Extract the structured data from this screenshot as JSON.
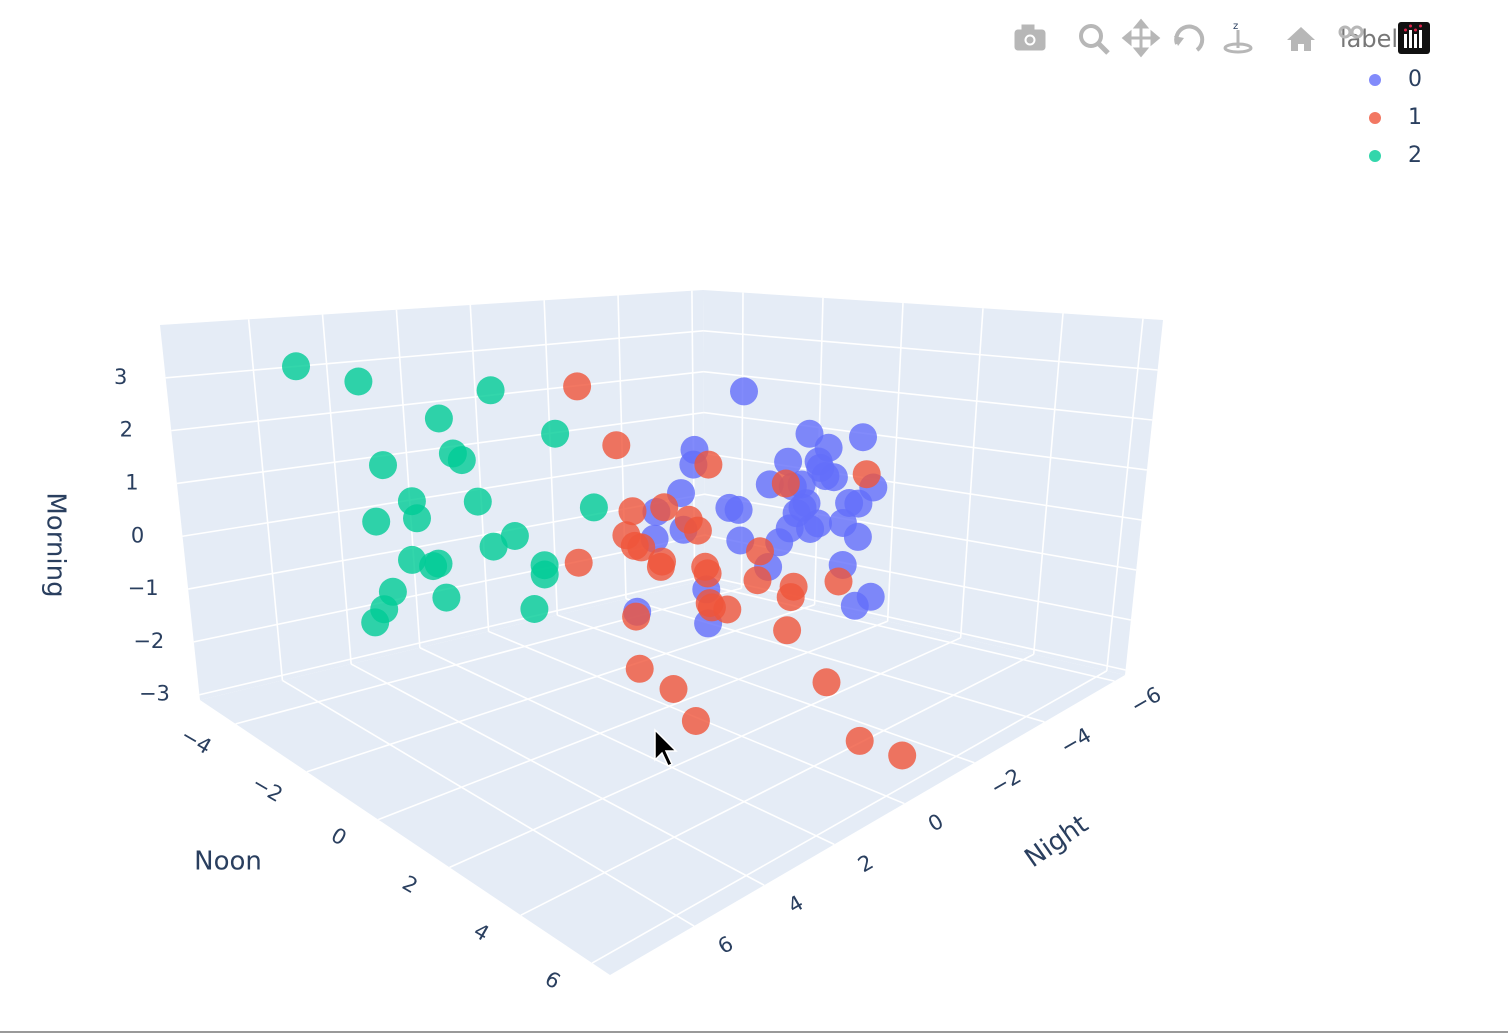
{
  "chart_data": {
    "type": "scatter3d",
    "xaxis_title": "Noon",
    "yaxis_title": "Night",
    "zaxis_title": "Morning",
    "legend_title": "label",
    "legend_position": "top right",
    "xlim": [
      -5,
      6.5
    ],
    "ylim": [
      -6.3,
      8.4
    ],
    "zlim": [
      -3.1,
      4
    ],
    "xticks": [
      {
        "value": -4,
        "label": "−4"
      },
      {
        "value": -2,
        "label": "−2"
      },
      0,
      2,
      4,
      6
    ],
    "yticks": [
      {
        "value": -6,
        "label": "−6"
      },
      {
        "value": -4,
        "label": "−4"
      },
      {
        "value": -2,
        "label": "−2"
      },
      0,
      2,
      4,
      6
    ],
    "zticks": [
      {
        "value": -3,
        "label": "−3"
      },
      {
        "value": -2,
        "label": "−2"
      },
      {
        "value": -1,
        "label": "−1"
      },
      0,
      1,
      2,
      3
    ],
    "grid": true,
    "series": [
      {
        "name": "0",
        "color": "#636efa",
        "x": [
          -0.57,
          -3.2,
          -1.84,
          -3.56,
          1.12,
          0.02,
          2.48,
          -1.23,
          0.6,
          -0.4,
          1.43,
          0.43,
          0.74,
          -0.26,
          1.57,
          0.85,
          2.81,
          -2.28,
          -2.81,
          -3.5,
          -0.65,
          -4.28,
          1.01,
          -0.68,
          1.43,
          0.71,
          2.45,
          1.12,
          -0.59,
          -0.95,
          1.23,
          -1.23,
          2.12,
          -2.89,
          -3.36,
          -1.42,
          1.12,
          2.9,
          -0.51,
          1.62
        ],
        "y": [
          -2.6,
          -4.1,
          -2.6,
          -4.1,
          -2.6,
          -4.1,
          -2.6,
          -4.1,
          -2.6,
          -4.1,
          -2.6,
          -4.1,
          -2.6,
          -4.1,
          -2.6,
          -4.1,
          -2.6,
          -4.1,
          -2.6,
          -4.1,
          -2.6,
          -4.1,
          -2.6,
          -4.1,
          -2.6,
          -4.1,
          -2.6,
          -4.1,
          -2.6,
          -4.1,
          -2.6,
          -4.1,
          -2.6,
          -4.1,
          -2.6,
          -2.6,
          -4.1,
          -2.6,
          -4.1,
          -2.6
        ],
        "z": [
          2.42,
          0.65,
          0.75,
          -0.38,
          1.77,
          0.85,
          1.86,
          0.19,
          1.16,
          0.31,
          1.15,
          0.58,
          0.69,
          -0.06,
          1.01,
          0.11,
          0.96,
          -0.49,
          -0.42,
          -1.2,
          0.01,
          -1.56,
          0.32,
          -0.66,
          0.08,
          -0.32,
          0.61,
          -0.54,
          -0.6,
          -1.0,
          -0.06,
          -1.58,
          -0.6,
          -2.41,
          -2.7,
          -2.47,
          -1.94,
          -1.06,
          -0.31,
          1.56
        ]
      },
      {
        "name": "1",
        "color": "#ef553b",
        "x": [
          -1.41,
          -1.8,
          1.91,
          -1.39,
          0.81,
          0.08,
          -0.16,
          -1.16,
          0.06,
          -2.83,
          1.69,
          -0.61,
          0.75,
          0.53,
          1.97,
          1.95,
          3.88,
          4.58,
          2.05,
          1.14,
          3.27,
          2.86,
          4.15,
          4.02,
          0.11,
          2.74,
          0.22,
          -0.27,
          1.77,
          3.85,
          6.18,
          5.99,
          2.11
        ],
        "y": [
          1.1,
          -0.4,
          1.1,
          -0.4,
          1.1,
          -0.4,
          1.1,
          -0.4,
          1.1,
          -0.4,
          1.1,
          -0.4,
          1.1,
          -0.4,
          1.1,
          -0.4,
          1.1,
          -0.4,
          1.1,
          -0.4,
          1.1,
          -0.4,
          1.1,
          -0.4,
          1.1,
          -0.4,
          1.1,
          -0.4,
          1.1,
          -0.4,
          1.1,
          -0.4,
          1.1
        ],
        "z": [
          2.78,
          1.44,
          1.79,
          0.21,
          0.89,
          0.31,
          0.22,
          -0.45,
          0.07,
          -1.12,
          0.63,
          -0.61,
          -0.17,
          -0.48,
          -0.05,
          0.06,
          1.73,
          1.76,
          -0.54,
          -1.14,
          0.07,
          -0.4,
          -0.05,
          -0.11,
          -1.19,
          -1.18,
          -2.1,
          -2.95,
          -2.61,
          -1.84,
          -1.89,
          -2.58,
          -0.6
        ]
      },
      {
        "name": "2",
        "color": "#00cc96",
        "x": [
          -3.75,
          -2.23,
          -1.62,
          -0.32,
          0.02,
          -1.29,
          -1.07,
          -1.7,
          -0.68,
          -0.99,
          -1.93,
          -0.87,
          -1.03,
          1.01,
          -0.29,
          -0.26,
          -1.03,
          -0.34,
          -1.56,
          -0.26,
          -0.54,
          -1.56,
          -1.81,
          -2.07,
          -0.48
        ],
        "y": [
          6.2,
          6.2,
          4.7,
          4.7,
          3.3,
          4.7,
          4.7,
          6.2,
          4.7,
          6.2,
          6.2,
          6.2,
          3.3,
          3.3,
          4.7,
          3.3,
          6.2,
          6.2,
          4.7,
          3.3,
          3.3,
          6.2,
          6.2,
          6.2,
          6.2
        ],
        "z": [
          3.25,
          3.16,
          2.48,
          3.12,
          2.31,
          1.92,
          1.84,
          1.8,
          1.2,
          1.32,
          0.79,
          1.06,
          0.36,
          1.22,
          0.52,
          0.01,
          0.34,
          0.43,
          -0.64,
          -0.15,
          -0.81,
          -0.32,
          -0.68,
          -0.98,
          0.36
        ]
      }
    ]
  }
}
